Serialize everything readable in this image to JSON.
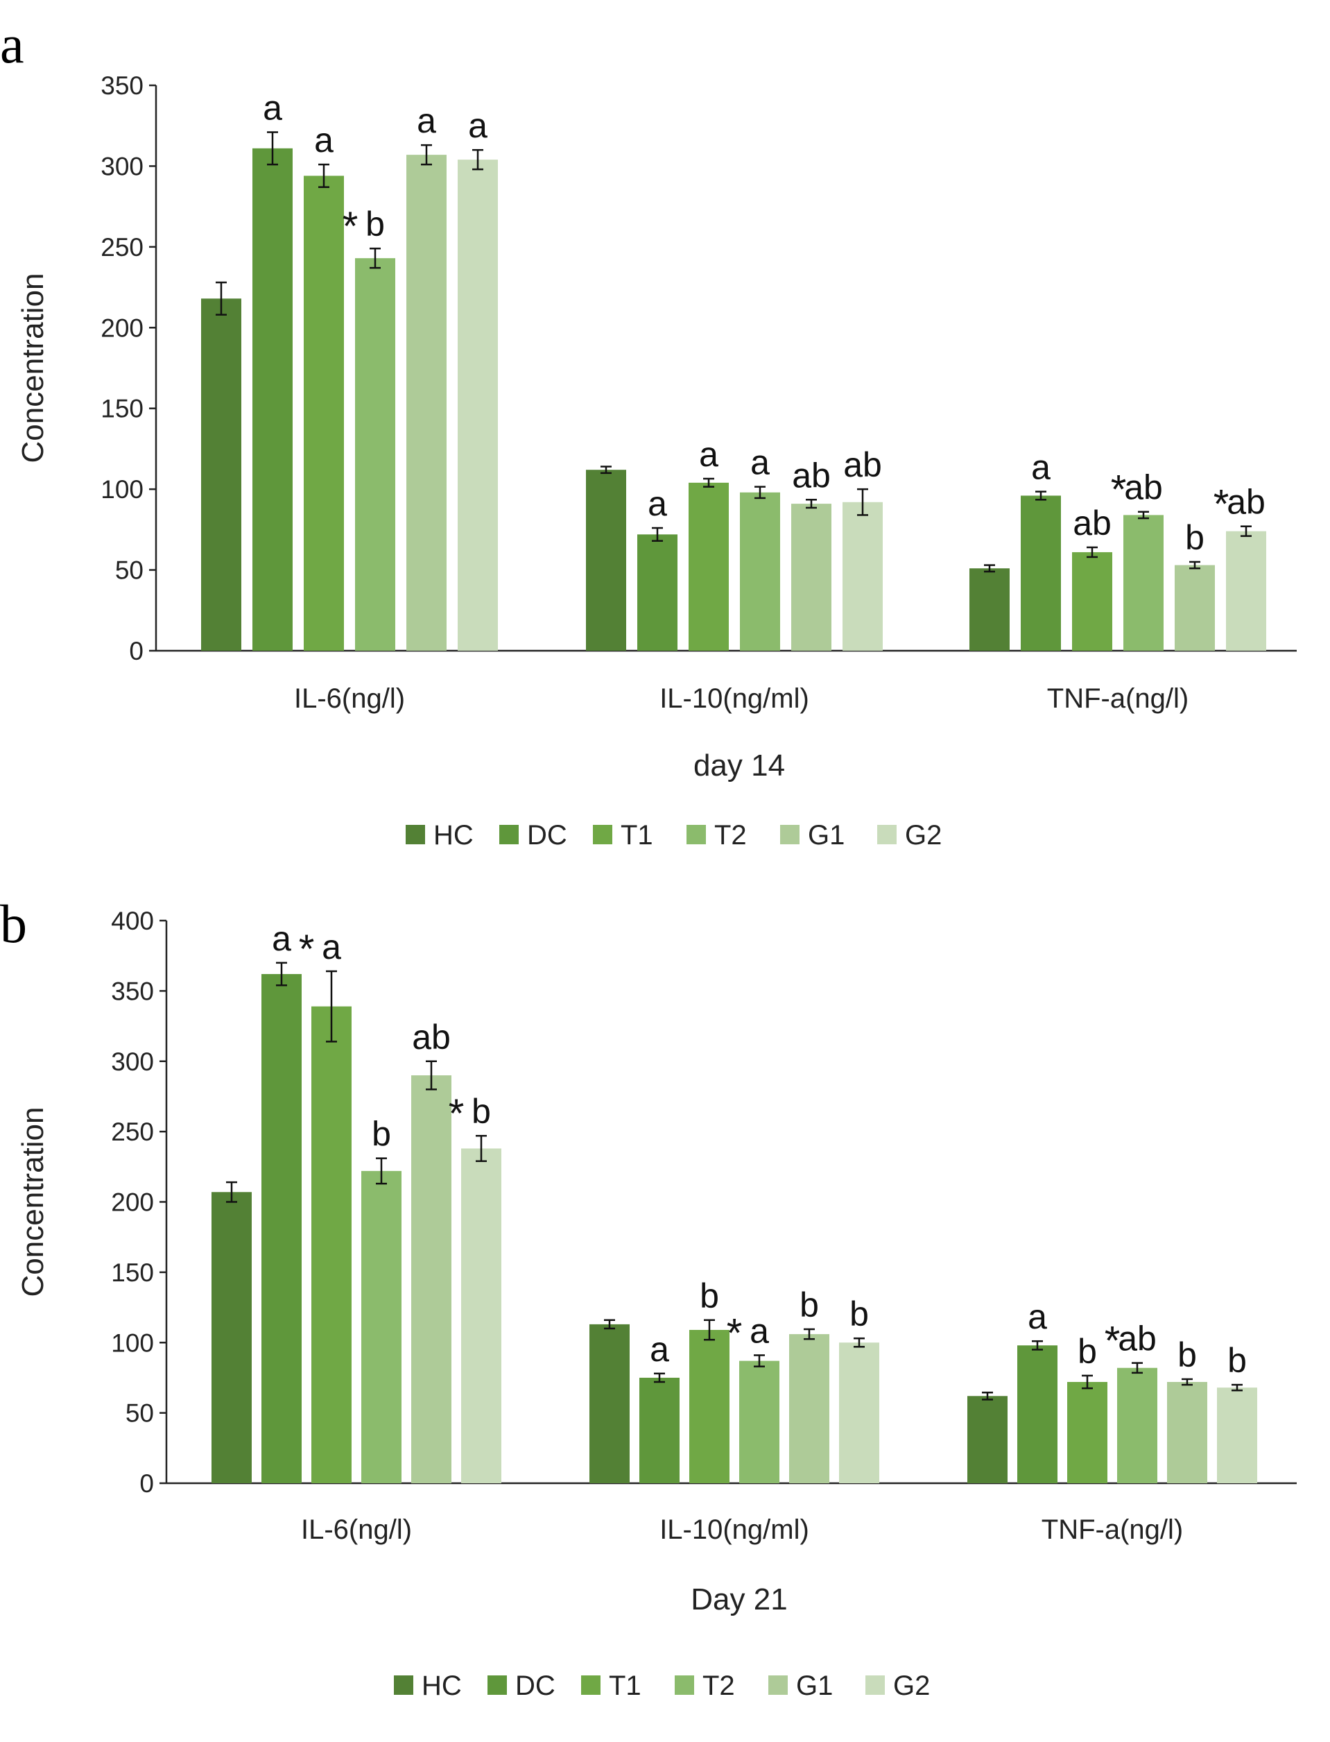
{
  "chart_data": [
    {
      "type": "bar",
      "panel": "a",
      "title": "",
      "xlabel": "day 14",
      "ylabel": "Concentration",
      "ylim": [
        0,
        350
      ],
      "yticks": [
        0,
        50,
        100,
        150,
        200,
        250,
        300,
        350
      ],
      "grid": false,
      "legend": "bottom",
      "categories": [
        "IL-6(ng/l)",
        "IL-10(ng/ml)",
        "TNF-a(ng/l)"
      ],
      "series": [
        {
          "name": "HC",
          "color": "#538135",
          "values": [
            218,
            112,
            51
          ],
          "errors": [
            10,
            2,
            2
          ],
          "labels": [
            "",
            "",
            ""
          ],
          "stars": [
            false,
            false,
            false
          ]
        },
        {
          "name": "DC",
          "color": "#5f973b",
          "values": [
            311,
            72,
            96
          ],
          "errors": [
            10,
            4,
            2.5
          ],
          "labels": [
            "a",
            "a",
            "a"
          ],
          "stars": [
            false,
            false,
            false
          ]
        },
        {
          "name": "T1",
          "color": "#70a845",
          "values": [
            294,
            104,
            61
          ],
          "errors": [
            7,
            2.5,
            3
          ],
          "labels": [
            "a",
            "a",
            "ab"
          ],
          "stars": [
            false,
            false,
            false
          ]
        },
        {
          "name": "T2",
          "color": "#8bbb6c",
          "values": [
            243,
            98,
            84
          ],
          "errors": [
            6,
            3.5,
            2
          ],
          "labels": [
            "b",
            "a",
            "ab"
          ],
          "stars": [
            true,
            false,
            true
          ]
        },
        {
          "name": "G1",
          "color": "#aecb98",
          "values": [
            307,
            91,
            53
          ],
          "errors": [
            6,
            2.5,
            2
          ],
          "labels": [
            "a",
            "ab",
            "b"
          ],
          "stars": [
            false,
            false,
            false
          ]
        },
        {
          "name": "G2",
          "color": "#c9dcbb",
          "values": [
            304,
            92,
            74
          ],
          "errors": [
            6,
            8,
            3
          ],
          "labels": [
            "a",
            "ab",
            "ab"
          ],
          "stars": [
            false,
            false,
            true
          ]
        }
      ]
    },
    {
      "type": "bar",
      "panel": "b",
      "title": "",
      "xlabel": "Day 21",
      "ylabel": "Concentration",
      "ylim": [
        0,
        400
      ],
      "yticks": [
        0,
        50,
        100,
        150,
        200,
        250,
        300,
        350,
        400
      ],
      "grid": false,
      "legend": "bottom",
      "categories": [
        "IL-6(ng/l)",
        "IL-10(ng/ml)",
        "TNF-a(ng/l)"
      ],
      "series": [
        {
          "name": "HC",
          "color": "#538135",
          "values": [
            207,
            113,
            62
          ],
          "errors": [
            7,
            3,
            2.5
          ],
          "labels": [
            "",
            "",
            ""
          ],
          "stars": [
            false,
            false,
            false
          ]
        },
        {
          "name": "DC",
          "color": "#5f973b",
          "values": [
            362,
            75,
            98
          ],
          "errors": [
            8,
            3,
            3
          ],
          "labels": [
            "a",
            "a",
            "a"
          ],
          "stars": [
            false,
            false,
            false
          ]
        },
        {
          "name": "T1",
          "color": "#70a845",
          "values": [
            339,
            109,
            72
          ],
          "errors": [
            25,
            7,
            4.5
          ],
          "labels": [
            "a",
            "b",
            "b"
          ],
          "stars": [
            true,
            false,
            false
          ]
        },
        {
          "name": "T2",
          "color": "#8bbb6c",
          "values": [
            222,
            87,
            82
          ],
          "errors": [
            9,
            4,
            3.5
          ],
          "labels": [
            "b",
            "a",
            "ab"
          ],
          "stars": [
            false,
            true,
            true
          ]
        },
        {
          "name": "G1",
          "color": "#aecb98",
          "values": [
            290,
            106,
            72
          ],
          "errors": [
            10,
            3.5,
            2
          ],
          "labels": [
            "ab",
            "b",
            "b"
          ],
          "stars": [
            false,
            false,
            false
          ]
        },
        {
          "name": "G2",
          "color": "#c9dcbb",
          "values": [
            238,
            100,
            68
          ],
          "errors": [
            9,
            3,
            2
          ],
          "labels": [
            "b",
            "b",
            "b"
          ],
          "stars": [
            true,
            false,
            false
          ]
        }
      ]
    }
  ]
}
